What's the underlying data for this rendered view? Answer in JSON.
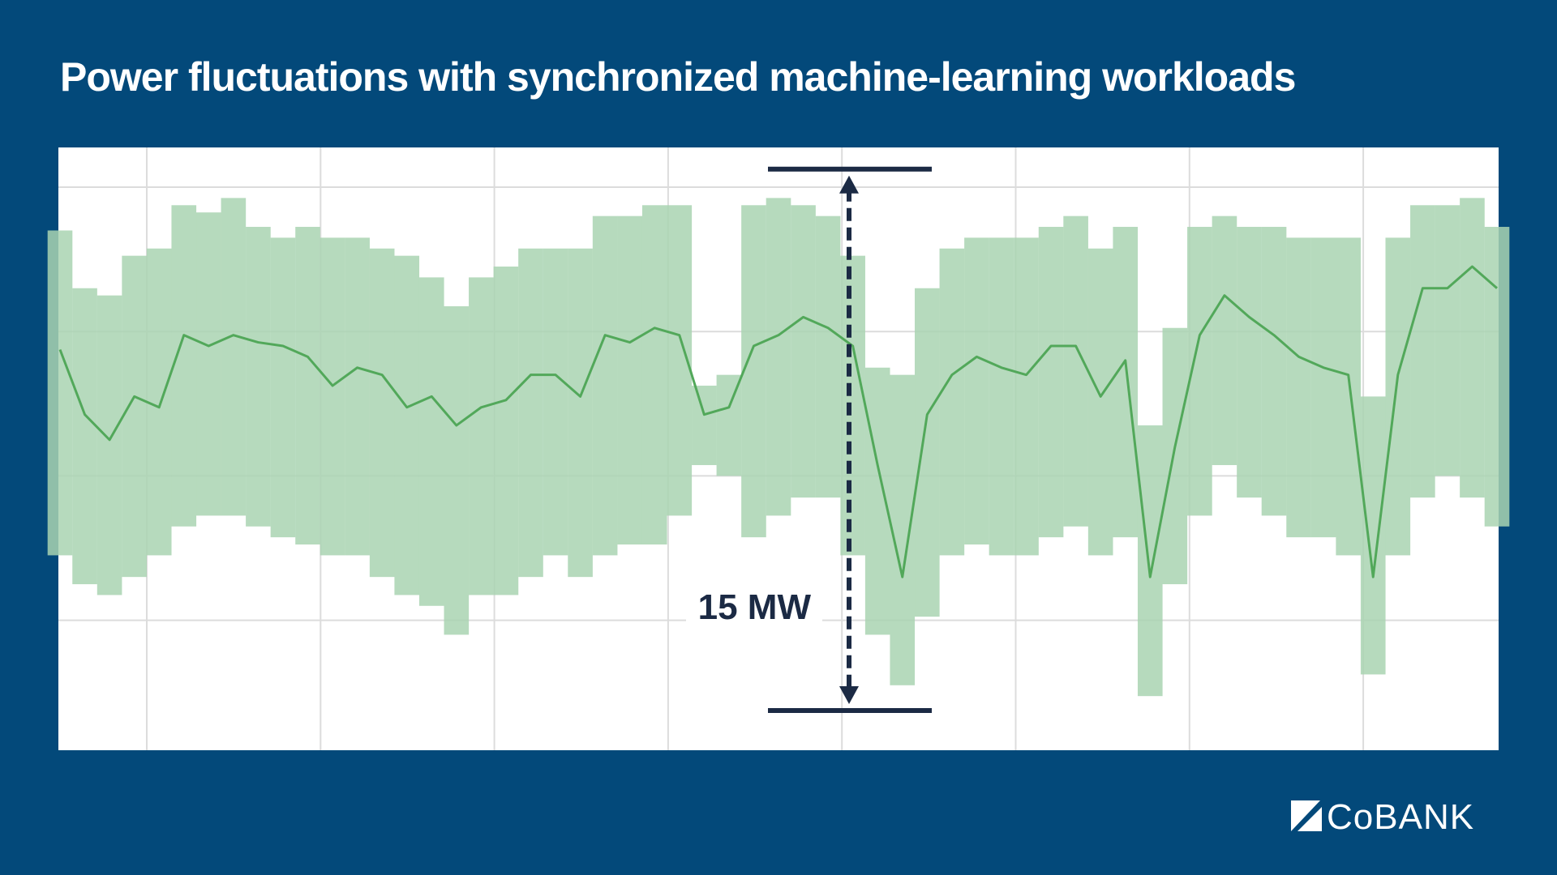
{
  "chart_data": {
    "type": "band-line",
    "title": "Power fluctuations with synchronized machine-learning workloads",
    "values": [
      19.5,
      17.7,
      17.0,
      18.2,
      17.9,
      19.9,
      19.6,
      19.9,
      19.7,
      19.6,
      19.3,
      18.5,
      19.0,
      18.8,
      17.9,
      18.2,
      17.4,
      17.9,
      18.1,
      18.8,
      18.8,
      18.2,
      19.9,
      19.7,
      20.1,
      19.9,
      17.7,
      17.9,
      19.6,
      19.9,
      20.4,
      20.1,
      19.6,
      16.3,
      13.2,
      17.7,
      18.8,
      19.3,
      19.0,
      18.8,
      19.6,
      19.6,
      18.2,
      19.2,
      13.2,
      16.8,
      19.9,
      21.0,
      20.4,
      19.9,
      19.3,
      19.0,
      18.8,
      13.2,
      18.8,
      21.2,
      21.2,
      21.8,
      21.2
    ],
    "band_high": [
      22.8,
      21.2,
      21.0,
      22.1,
      22.3,
      23.5,
      23.3,
      23.7,
      22.9,
      22.6,
      22.9,
      22.6,
      22.6,
      22.3,
      22.1,
      21.5,
      20.7,
      21.5,
      21.8,
      22.3,
      22.3,
      22.3,
      23.2,
      23.2,
      23.5,
      23.5,
      18.5,
      18.8,
      23.5,
      23.7,
      23.5,
      23.2,
      22.1,
      19.0,
      18.8,
      21.2,
      22.3,
      22.6,
      22.6,
      22.6,
      22.9,
      23.2,
      22.3,
      22.9,
      17.4,
      20.1,
      22.9,
      23.2,
      22.9,
      22.9,
      22.6,
      22.6,
      22.6,
      18.2,
      22.6,
      23.5,
      23.5,
      23.7,
      22.9
    ],
    "band_low": [
      13.8,
      13.0,
      12.7,
      13.2,
      13.8,
      14.6,
      14.9,
      14.9,
      14.6,
      14.3,
      14.1,
      13.8,
      13.8,
      13.2,
      12.7,
      12.4,
      11.6,
      12.7,
      12.7,
      13.2,
      13.8,
      13.2,
      13.8,
      14.1,
      14.1,
      14.9,
      16.3,
      16.0,
      14.3,
      14.9,
      15.4,
      15.4,
      13.8,
      11.6,
      10.2,
      12.1,
      13.8,
      14.1,
      13.8,
      13.8,
      14.3,
      14.6,
      13.8,
      14.3,
      9.9,
      13.0,
      14.9,
      16.3,
      15.4,
      14.9,
      14.3,
      14.3,
      13.8,
      10.5,
      13.8,
      15.4,
      16.0,
      15.4,
      14.6
    ],
    "color": "#52a85a",
    "band_color": "#a9d3b1",
    "ylim": [
      8.4,
      25.1
    ],
    "yticks": [
      12,
      16,
      20,
      24
    ],
    "grid": true,
    "annotation": {
      "text": "15 MW",
      "from": 9.5,
      "to": 24.5
    }
  },
  "logo": "CoBANK"
}
